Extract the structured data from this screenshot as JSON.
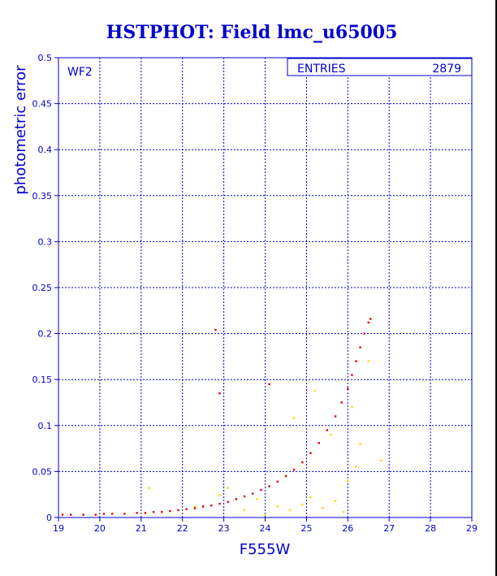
{
  "chart_data": {
    "type": "scatter",
    "title": "HSTPHOT: Field lmc_u65005",
    "xlabel": "F555W",
    "ylabel": "photometric error",
    "panel_label": "WF2",
    "stats_box": {
      "label": "ENTRIES",
      "value": "2879"
    },
    "xlim": [
      19,
      29
    ],
    "ylim": [
      0,
      0.5
    ],
    "x_ticks": [
      "19",
      "20",
      "21",
      "22",
      "23",
      "24",
      "25",
      "26",
      "27",
      "28",
      "29"
    ],
    "y_ticks": [
      "0",
      "0.05",
      "0.1",
      "0.15",
      "0.2",
      "0.25",
      "0.3",
      "0.35",
      "0.4",
      "0.45",
      "0.5"
    ],
    "grid": true,
    "colors": {
      "frame": "#0000cc",
      "grid": "#0000cc",
      "main": "#e00000",
      "secondary": "#ffd800",
      "title": "#0000cc"
    },
    "series": [
      {
        "color": "#e00000",
        "points": [
          [
            19.1,
            0.003
          ],
          [
            19.3,
            0.003
          ],
          [
            19.6,
            0.003
          ],
          [
            19.9,
            0.003
          ],
          [
            20.1,
            0.004
          ],
          [
            20.3,
            0.004
          ],
          [
            20.6,
            0.004
          ],
          [
            20.9,
            0.005
          ],
          [
            21.1,
            0.005
          ],
          [
            21.3,
            0.006
          ],
          [
            21.5,
            0.006
          ],
          [
            21.7,
            0.007
          ],
          [
            21.9,
            0.008
          ],
          [
            22.1,
            0.009
          ],
          [
            22.3,
            0.01
          ],
          [
            22.5,
            0.012
          ],
          [
            22.7,
            0.013
          ],
          [
            22.9,
            0.015
          ],
          [
            23.1,
            0.017
          ],
          [
            23.3,
            0.02
          ],
          [
            23.5,
            0.023
          ],
          [
            23.7,
            0.026
          ],
          [
            23.9,
            0.03
          ],
          [
            24.1,
            0.034
          ],
          [
            24.3,
            0.039
          ],
          [
            24.5,
            0.045
          ],
          [
            24.7,
            0.052
          ],
          [
            24.9,
            0.06
          ],
          [
            25.1,
            0.07
          ],
          [
            25.3,
            0.081
          ],
          [
            25.5,
            0.095
          ],
          [
            25.7,
            0.11
          ],
          [
            25.85,
            0.125
          ],
          [
            26.0,
            0.14
          ],
          [
            26.1,
            0.155
          ],
          [
            26.2,
            0.17
          ],
          [
            26.3,
            0.185
          ],
          [
            26.4,
            0.2
          ],
          [
            26.5,
            0.212
          ],
          [
            26.55,
            0.216
          ],
          [
            22.8,
            0.204
          ],
          [
            22.9,
            0.135
          ],
          [
            24.1,
            0.145
          ]
        ]
      },
      {
        "color": "#ffd800",
        "points": [
          [
            21.2,
            0.032
          ],
          [
            22.3,
            0.012
          ],
          [
            22.9,
            0.024
          ],
          [
            23.1,
            0.032
          ],
          [
            23.5,
            0.008
          ],
          [
            23.8,
            0.02
          ],
          [
            24.0,
            0.003
          ],
          [
            24.3,
            0.012
          ],
          [
            24.6,
            0.008
          ],
          [
            24.9,
            0.014
          ],
          [
            25.1,
            0.022
          ],
          [
            25.4,
            0.01
          ],
          [
            25.7,
            0.018
          ],
          [
            25.9,
            0.006
          ],
          [
            26.0,
            0.04
          ],
          [
            26.2,
            0.055
          ],
          [
            26.3,
            0.08
          ],
          [
            26.5,
            0.17
          ],
          [
            26.8,
            0.062
          ],
          [
            26.1,
            0.12
          ],
          [
            25.6,
            0.09
          ],
          [
            24.7,
            0.108
          ],
          [
            25.2,
            0.138
          ]
        ]
      }
    ]
  }
}
